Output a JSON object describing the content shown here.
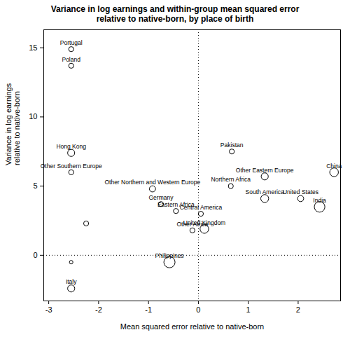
{
  "chart_data": {
    "type": "scatter",
    "title": [
      "Variance in log earnings and within-group mean squared error",
      "relative to native-born, by place of birth"
    ],
    "x_label": "Mean squared error relative to native-born",
    "y_label": [
      "Variance in log earnings",
      "relative to native-born"
    ],
    "labels": [
      "Portugal",
      "Poland",
      "Hong Kong",
      "Other Southern Europe",
      null,
      null,
      "Italy",
      "Other Northern and Western Europe",
      "Germany",
      "Eastern Africa",
      "Philippines",
      "Central America",
      "Other Africa",
      "United Kingdom",
      "Pakistan",
      "Northern Africa",
      "Other Eastern Europe",
      "South America",
      "United States",
      "India",
      "China"
    ],
    "x": [
      -2.55,
      -2.55,
      -2.55,
      -2.55,
      -2.25,
      -2.55,
      -2.55,
      -0.92,
      -0.75,
      -0.45,
      -0.58,
      0.05,
      -0.12,
      0.12,
      0.67,
      0.65,
      1.33,
      1.33,
      2.05,
      2.43,
      2.72
    ],
    "y": [
      14.9,
      13.7,
      7.4,
      6.0,
      2.3,
      -0.5,
      -2.4,
      4.8,
      3.7,
      3.2,
      -0.5,
      3.0,
      1.8,
      1.9,
      7.5,
      5.0,
      5.7,
      4.1,
      4.1,
      3.5,
      6.0
    ],
    "sizes": [
      1,
      1,
      2,
      1,
      1,
      0.5,
      2,
      1.5,
      1,
      1,
      5,
      1,
      1,
      3,
      1,
      1,
      2,
      2.5,
      1.5,
      4.5,
      3
    ],
    "xlim": [
      -3.1,
      2.85
    ],
    "ylim": [
      -3.3,
      16.3
    ],
    "xticks": [
      -3,
      -2,
      -1,
      0,
      1,
      2
    ],
    "yticks": [
      0,
      5,
      10,
      15
    ],
    "reference_lines": {
      "x": [
        0
      ],
      "y": [
        0
      ]
    },
    "marker": "circle",
    "color": "#000000",
    "grid": false
  }
}
